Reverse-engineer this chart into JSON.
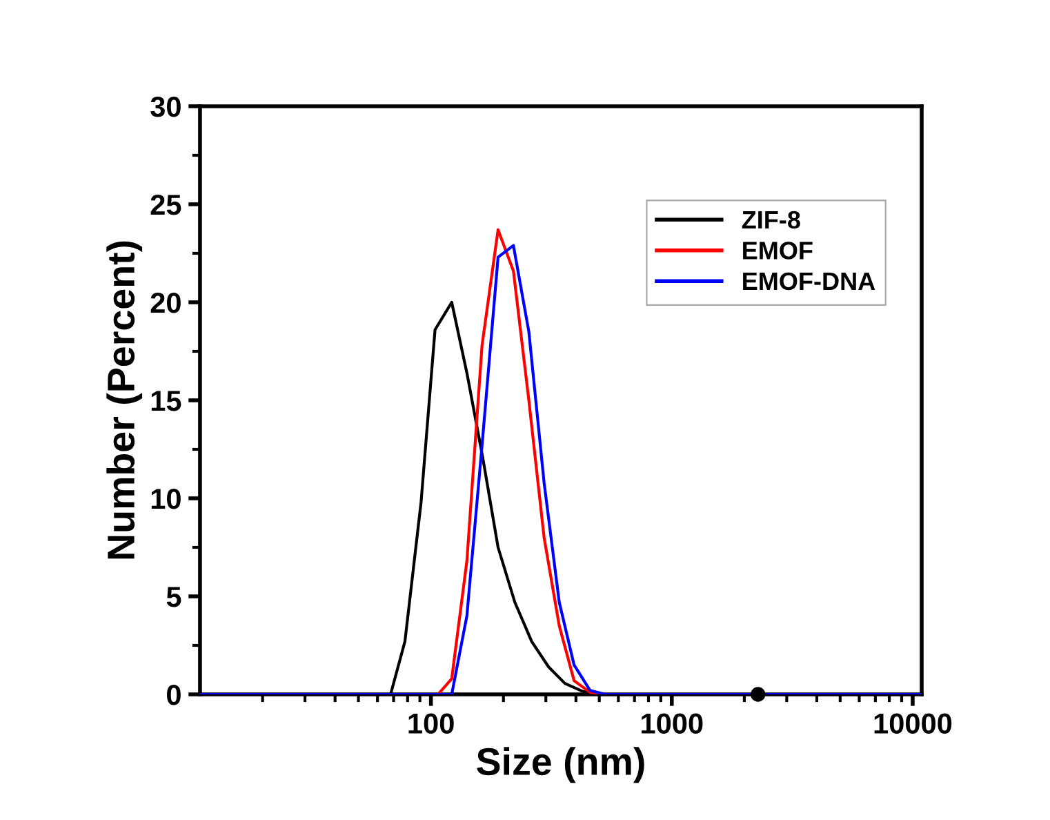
{
  "chart_data": {
    "type": "line",
    "xlabel": "Size (nm)",
    "ylabel": "Number (Percent)",
    "log": "x",
    "xlim": [
      11,
      10900
    ],
    "xticks": [
      100,
      1000,
      10000
    ],
    "ylim": [
      0,
      30
    ],
    "yticks": [
      0,
      5,
      10,
      15,
      20,
      25,
      30
    ],
    "grid": false,
    "legend": "top right",
    "marker": "none",
    "line_style": "solid",
    "series": [
      {
        "name": "ZIF-8",
        "color": "#000000",
        "x": [
          11,
          68,
          78,
          91,
          104,
          122,
          141,
          164,
          190,
          223,
          262,
          308,
          360,
          425,
          513,
          10900
        ],
        "values": [
          0,
          0,
          2.7,
          9.8,
          18.6,
          20.0,
          16.4,
          12.1,
          7.5,
          4.7,
          2.7,
          1.4,
          0.56,
          0.16,
          0,
          0
        ]
      },
      {
        "name": "EMOF",
        "color": "#ff0000",
        "x": [
          11,
          107,
          122,
          141,
          163,
          190,
          220,
          255,
          295,
          341,
          393,
          458,
          530,
          10900
        ],
        "values": [
          0,
          0,
          0.8,
          6.8,
          17.8,
          23.7,
          21.6,
          15.0,
          8.0,
          3.5,
          0.7,
          0.1,
          0,
          0
        ]
      },
      {
        "name": "EMOF-DNA",
        "color": "#0000ff",
        "x": [
          11,
          122,
          141,
          163,
          190,
          220,
          255,
          295,
          341,
          393,
          458,
          530,
          10900
        ],
        "values": [
          0,
          0,
          4.0,
          12.7,
          22.3,
          22.9,
          18.5,
          10.8,
          4.7,
          1.5,
          0.2,
          0,
          0
        ]
      },
      {
        "type": "scatter",
        "color": "#000000",
        "marker": "circle",
        "x": [
          2280
        ],
        "values": [
          0
        ]
      }
    ]
  }
}
